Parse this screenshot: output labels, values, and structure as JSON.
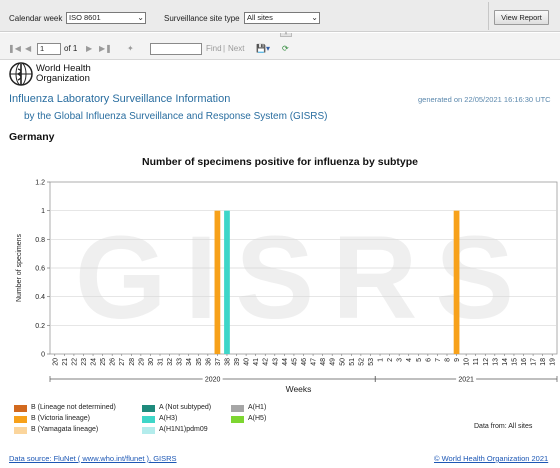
{
  "params": {
    "calendar_week_label": "Calendar week",
    "calendar_week_value": "ISO 8601",
    "site_type_label": "Surveillance site type",
    "site_type_value": "All sites",
    "view_report_label": "View Report"
  },
  "toolbar": {
    "page_value": "1",
    "page_of": "of 1",
    "find_label": "Find",
    "separator": "|",
    "next_label": "Next",
    "find_value": ""
  },
  "report": {
    "org_line1": "World Health",
    "org_line2": "Organization",
    "title1": "Influenza Laboratory Surveillance Information",
    "title2": "by the Global Influenza Surveillance and Response System (GISRS)",
    "generated": "generated on 22/05/2021 16:16:30 UTC",
    "country": "Germany",
    "data_from": "Data from: All sites",
    "footer_left": "Data source: FluNet ( www.who.int/flunet ), GISRS",
    "footer_right": "© World Health Organization 2021"
  },
  "chart_data": {
    "type": "bar",
    "title": "Number of specimens positive for influenza by subtype",
    "xlabel": "Weeks",
    "ylabel": "Number of specimens",
    "watermark": "GISRS",
    "ylim": [
      0,
      1.2
    ],
    "yticks": [
      "0",
      "0.2",
      "0.4",
      "0.6",
      "0.8",
      "1",
      "1.2"
    ],
    "categories": [
      "20",
      "21",
      "22",
      "23",
      "24",
      "25",
      "26",
      "27",
      "28",
      "29",
      "30",
      "31",
      "32",
      "33",
      "34",
      "35",
      "36",
      "37",
      "38",
      "39",
      "40",
      "41",
      "42",
      "43",
      "44",
      "45",
      "46",
      "47",
      "48",
      "49",
      "50",
      "51",
      "52",
      "53",
      "1",
      "2",
      "3",
      "4",
      "5",
      "6",
      "7",
      "8",
      "9",
      "10",
      "11",
      "12",
      "13",
      "14",
      "15",
      "16",
      "17",
      "18",
      "19"
    ],
    "year_groups": [
      {
        "label": "2020",
        "from": "20",
        "to": "53"
      },
      {
        "label": "2021",
        "from": "1",
        "to": "19"
      }
    ],
    "series": [
      {
        "name": "B (Lineage not determined)",
        "color": "#d2691e",
        "values": {}
      },
      {
        "name": "B (Victoria lineage)",
        "color": "#f7a11a",
        "values": {
          "37": 1,
          "9": 1
        }
      },
      {
        "name": "B (Yamagata lineage)",
        "color": "#fbd59c",
        "values": {}
      },
      {
        "name": "A (Not subtyped)",
        "color": "#1e8a7c",
        "values": {}
      },
      {
        "name": "A(H3)",
        "color": "#3ed6c8",
        "values": {
          "38": 1
        }
      },
      {
        "name": "A(H1N1)pdm09",
        "color": "#b3ecec",
        "values": {}
      },
      {
        "name": "A(H1)",
        "color": "#a6a6a6",
        "values": {}
      },
      {
        "name": "A(H5)",
        "color": "#7dd631",
        "values": {}
      }
    ],
    "grid": true
  }
}
